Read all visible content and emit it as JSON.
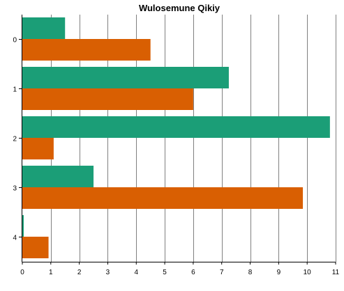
{
  "chart_data": {
    "type": "bar",
    "orientation": "horizontal",
    "title": "Wulosemune Qikiy",
    "xlabel": "",
    "ylabel": "",
    "categories": [
      "0",
      "1",
      "2",
      "3",
      "4"
    ],
    "x_ticks": [
      "0",
      "1",
      "2",
      "3",
      "4",
      "5",
      "6",
      "7",
      "8",
      "9",
      "10",
      "11"
    ],
    "xlim": [
      0,
      11
    ],
    "grid": "vertical",
    "legend": "none",
    "series": [
      {
        "color": "#1b9e77",
        "values": [
          1.5,
          7.25,
          10.8,
          2.5,
          0.05
        ]
      },
      {
        "color": "#d95f02",
        "values": [
          4.5,
          6.0,
          1.1,
          9.85,
          0.92
        ]
      }
    ]
  }
}
